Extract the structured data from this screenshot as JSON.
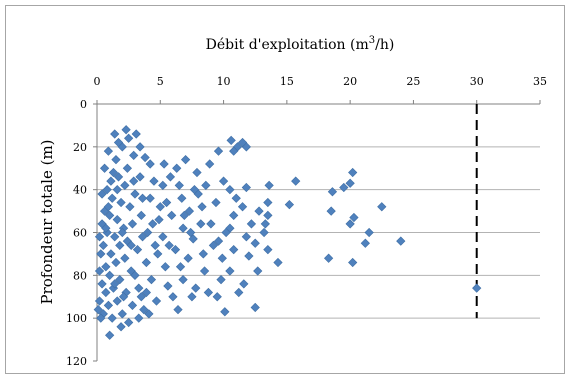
{
  "chart_data": {
    "type": "scatter",
    "title": "",
    "xlabel": "Débit d'exploitation (m3/h)",
    "xlabel_parts": [
      "Débit d'exploitation (m",
      "3",
      "/h)"
    ],
    "ylabel": "Profondeur totale (m)",
    "xlim": [
      0,
      35
    ],
    "ylim": [
      0,
      120
    ],
    "y_axis_inverted": true,
    "x_axis_position": "top",
    "x_ticks": [
      "0",
      "5",
      "10",
      "15",
      "20",
      "25",
      "30",
      "35"
    ],
    "y_ticks": [
      "0",
      "20",
      "40",
      "60",
      "80",
      "100",
      "120"
    ],
    "grid": "horizontal",
    "legend": "none",
    "reference_line": {
      "x": 30,
      "y_from": 0,
      "y_to": 100,
      "style": "dashed",
      "color": "#000000"
    },
    "colors": {
      "marker": "#4f81bd",
      "grid": "#b3b3b3",
      "axis": "#808080"
    },
    "series": [
      {
        "marker": "diamond",
        "points": [
          [
            30.0,
            86
          ],
          [
            24.0,
            64
          ],
          [
            22.5,
            48
          ],
          [
            21.5,
            60
          ],
          [
            21.2,
            65
          ],
          [
            20.2,
            32
          ],
          [
            20.0,
            37
          ],
          [
            20.3,
            53
          ],
          [
            20.0,
            56
          ],
          [
            20.2,
            74
          ],
          [
            19.5,
            39
          ],
          [
            18.6,
            41
          ],
          [
            18.5,
            50
          ],
          [
            18.3,
            72
          ],
          [
            15.7,
            36
          ],
          [
            15.2,
            47
          ],
          [
            13.6,
            38
          ],
          [
            13.5,
            46
          ],
          [
            13.5,
            52
          ],
          [
            13.3,
            56
          ],
          [
            14.3,
            74
          ],
          [
            13.5,
            68
          ],
          [
            13.2,
            60
          ],
          [
            12.5,
            95
          ],
          [
            11.8,
            20
          ],
          [
            11.5,
            18
          ],
          [
            11.1,
            20
          ],
          [
            10.8,
            22
          ],
          [
            10.6,
            17
          ],
          [
            10.1,
            97
          ],
          [
            9.6,
            22
          ],
          [
            11.8,
            39
          ],
          [
            11.5,
            48
          ],
          [
            11.8,
            62
          ],
          [
            12.0,
            71
          ],
          [
            12.5,
            65
          ],
          [
            12.8,
            50
          ],
          [
            10.8,
            52
          ],
          [
            10.5,
            58
          ],
          [
            10.8,
            68
          ],
          [
            10.5,
            78
          ],
          [
            11.2,
            88
          ],
          [
            10.5,
            40
          ],
          [
            9.8,
            82
          ],
          [
            9.5,
            90
          ],
          [
            9.4,
            46
          ],
          [
            9.6,
            64
          ],
          [
            8.8,
            88
          ],
          [
            8.5,
            78
          ],
          [
            8.4,
            70
          ],
          [
            8.2,
            56
          ],
          [
            8.0,
            42
          ],
          [
            7.9,
            32
          ],
          [
            7.6,
            63
          ],
          [
            7.5,
            90
          ],
          [
            7.3,
            50
          ],
          [
            7.2,
            72
          ],
          [
            6.8,
            82
          ],
          [
            6.8,
            58
          ],
          [
            6.7,
            44
          ],
          [
            6.5,
            38
          ],
          [
            6.3,
            30
          ],
          [
            6.2,
            68
          ],
          [
            5.9,
            52
          ],
          [
            5.6,
            85
          ],
          [
            5.4,
            76
          ],
          [
            5.2,
            62
          ],
          [
            5.2,
            38
          ],
          [
            5.0,
            48
          ],
          [
            4.7,
            92
          ],
          [
            4.6,
            66
          ],
          [
            4.4,
            56
          ],
          [
            4.3,
            82
          ],
          [
            4.2,
            44
          ],
          [
            4.2,
            28
          ],
          [
            3.9,
            74
          ],
          [
            3.7,
            96
          ],
          [
            3.6,
            62
          ],
          [
            3.5,
            52
          ],
          [
            3.4,
            34
          ],
          [
            3.3,
            100
          ],
          [
            3.3,
            86
          ],
          [
            3.2,
            68
          ],
          [
            3.0,
            42
          ],
          [
            2.9,
            24
          ],
          [
            2.8,
            94
          ],
          [
            2.8,
            56
          ],
          [
            2.7,
            78
          ],
          [
            2.6,
            48
          ],
          [
            2.5,
            16
          ],
          [
            2.4,
            64
          ],
          [
            2.4,
            30
          ],
          [
            2.3,
            88
          ],
          [
            2.2,
            38
          ],
          [
            2.2,
            72
          ],
          [
            2.1,
            58
          ],
          [
            2.0,
            20
          ],
          [
            2.0,
            98
          ],
          [
            1.9,
            46
          ],
          [
            1.8,
            82
          ],
          [
            1.8,
            66
          ],
          [
            1.7,
            34
          ],
          [
            1.6,
            54
          ],
          [
            1.6,
            92
          ],
          [
            1.5,
            26
          ],
          [
            1.5,
            74
          ],
          [
            1.4,
            14
          ],
          [
            1.4,
            62
          ],
          [
            1.3,
            86
          ],
          [
            1.2,
            44
          ],
          [
            1.2,
            100
          ],
          [
            1.1,
            36
          ],
          [
            1.1,
            70
          ],
          [
            1.0,
            52
          ],
          [
            1.0,
            80
          ],
          [
            1.0,
            108
          ],
          [
            0.9,
            22
          ],
          [
            0.9,
            94
          ],
          [
            0.8,
            60
          ],
          [
            0.8,
            40
          ],
          [
            0.7,
            76
          ],
          [
            0.7,
            88
          ],
          [
            0.6,
            30
          ],
          [
            0.6,
            50
          ],
          [
            0.5,
            66
          ],
          [
            0.5,
            98
          ],
          [
            0.4,
            84
          ],
          [
            0.4,
            56
          ],
          [
            0.3,
            70
          ],
          [
            0.3,
            100
          ],
          [
            0.2,
            92
          ],
          [
            0.2,
            78
          ],
          [
            0.2,
            62
          ],
          [
            0.1,
            96
          ],
          [
            3.8,
            25
          ],
          [
            3.9,
            88
          ],
          [
            4.8,
            70
          ],
          [
            5.8,
            34
          ],
          [
            6.0,
            90
          ],
          [
            7.0,
            26
          ],
          [
            7.8,
            86
          ],
          [
            8.6,
            38
          ],
          [
            9.0,
            56
          ],
          [
            9.9,
            72
          ],
          [
            6.4,
            96
          ],
          [
            5.5,
            46
          ],
          [
            4.0,
            60
          ],
          [
            2.5,
            102
          ],
          [
            1.9,
            104
          ],
          [
            3.1,
            14
          ],
          [
            2.3,
            12
          ],
          [
            1.7,
            18
          ],
          [
            3.4,
            20
          ],
          [
            4.5,
            36
          ],
          [
            3.0,
            80
          ],
          [
            2.1,
            90
          ],
          [
            1.3,
            32
          ],
          [
            0.9,
            48
          ],
          [
            1.6,
            40
          ],
          [
            2.7,
            66
          ],
          [
            3.6,
            44
          ],
          [
            4.9,
            54
          ],
          [
            5.7,
            66
          ],
          [
            6.6,
            76
          ],
          [
            7.4,
            60
          ],
          [
            8.3,
            48
          ],
          [
            9.2,
            66
          ],
          [
            10.2,
            60
          ],
          [
            11.0,
            44
          ],
          [
            12.2,
            56
          ],
          [
            12.7,
            78
          ],
          [
            11.6,
            84
          ],
          [
            10.0,
            36
          ],
          [
            8.9,
            28
          ],
          [
            7.7,
            40
          ],
          [
            6.9,
            52
          ],
          [
            5.3,
            28
          ],
          [
            4.1,
            98
          ],
          [
            3.5,
            90
          ],
          [
            2.9,
            36
          ],
          [
            2.0,
            60
          ],
          [
            1.4,
            84
          ],
          [
            0.7,
            58
          ],
          [
            0.4,
            42
          ]
        ]
      }
    ]
  }
}
